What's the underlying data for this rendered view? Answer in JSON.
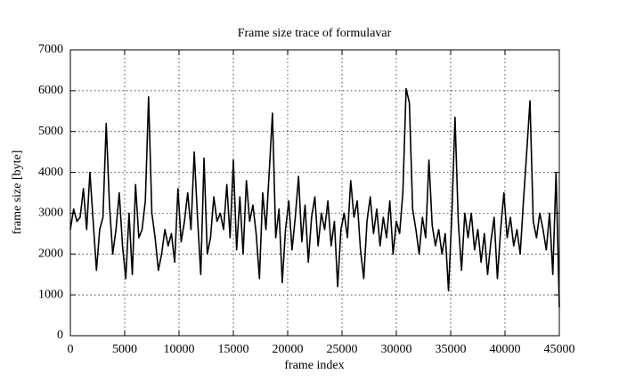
{
  "chart_data": {
    "type": "line",
    "title": "Frame size trace of formulavar",
    "xlabel": "frame index",
    "ylabel": "frame size [byte]",
    "color": "#000000",
    "grid": true,
    "xlim": [
      0,
      45000
    ],
    "ylim": [
      0,
      7000
    ],
    "xticks": [
      0,
      5000,
      10000,
      15000,
      20000,
      25000,
      30000,
      35000,
      40000,
      45000
    ],
    "yticks": [
      0,
      1000,
      2000,
      3000,
      4000,
      5000,
      6000,
      7000
    ],
    "x": [
      0,
      300,
      600,
      900,
      1200,
      1500,
      1800,
      2100,
      2400,
      2700,
      3000,
      3300,
      3600,
      3900,
      4200,
      4500,
      4800,
      5100,
      5400,
      5700,
      6000,
      6300,
      6600,
      6900,
      7200,
      7500,
      7800,
      8100,
      8400,
      8700,
      9000,
      9300,
      9600,
      9900,
      10200,
      10500,
      10800,
      11100,
      11400,
      11700,
      12000,
      12300,
      12600,
      12900,
      13200,
      13500,
      13800,
      14100,
      14400,
      14700,
      15000,
      15300,
      15600,
      15900,
      16200,
      16500,
      16800,
      17100,
      17400,
      17700,
      18000,
      18300,
      18600,
      18900,
      19200,
      19500,
      19800,
      20100,
      20400,
      20700,
      21000,
      21300,
      21600,
      21900,
      22200,
      22500,
      22800,
      23100,
      23400,
      23700,
      24000,
      24300,
      24600,
      24900,
      25200,
      25500,
      25800,
      26100,
      26400,
      26700,
      27000,
      27300,
      27600,
      27900,
      28200,
      28500,
      28800,
      29100,
      29400,
      29700,
      30000,
      30300,
      30600,
      30900,
      31200,
      31500,
      31800,
      32100,
      32400,
      32700,
      33000,
      33300,
      33600,
      33900,
      34200,
      34500,
      34800,
      35100,
      35400,
      35700,
      36000,
      36300,
      36600,
      36900,
      37200,
      37500,
      37800,
      38100,
      38400,
      38700,
      39000,
      39300,
      39600,
      39900,
      40200,
      40500,
      40800,
      41100,
      41400,
      41700,
      42000,
      42300,
      42600,
      42900,
      43200,
      43500,
      43800,
      44100,
      44400,
      44700,
      45000
    ],
    "values": [
      2600,
      3100,
      2800,
      2900,
      3600,
      2600,
      4000,
      2800,
      1600,
      2600,
      2900,
      5200,
      3200,
      2000,
      2600,
      3500,
      2200,
      1400,
      3000,
      1500,
      3700,
      2400,
      2600,
      3300,
      5850,
      3000,
      2400,
      1600,
      2000,
      2600,
      2200,
      2500,
      1800,
      3600,
      2300,
      2800,
      3500,
      2600,
      4500,
      2900,
      1500,
      4350,
      2000,
      2400,
      3400,
      2800,
      3000,
      2600,
      3700,
      2400,
      4300,
      2100,
      3400,
      2000,
      3800,
      2800,
      3200,
      2500,
      1400,
      3500,
      2600,
      4000,
      5450,
      2400,
      3100,
      1300,
      2600,
      3300,
      2100,
      2900,
      3900,
      2300,
      3200,
      1800,
      2900,
      3400,
      2200,
      3000,
      2600,
      3300,
      2200,
      2800,
      1200,
      2600,
      3000,
      2400,
      3800,
      2900,
      3300,
      2100,
      1400,
      2800,
      3400,
      2500,
      3100,
      2200,
      2900,
      2400,
      3300,
      2000,
      2800,
      2500,
      3500,
      6050,
      5700,
      3100,
      2600,
      2000,
      2900,
      2400,
      4300,
      2700,
      2200,
      2600,
      2000,
      2500,
      1100,
      2900,
      5350,
      2800,
      1600,
      3000,
      2400,
      3000,
      2100,
      2600,
      1800,
      2500,
      1500,
      2300,
      2900,
      1400,
      2600,
      3500,
      2400,
      2900,
      2200,
      2600,
      2000,
      3300,
      4500,
      5750,
      2800,
      2400,
      3000,
      2600,
      2100,
      3000,
      1500,
      4000,
      700
    ]
  }
}
